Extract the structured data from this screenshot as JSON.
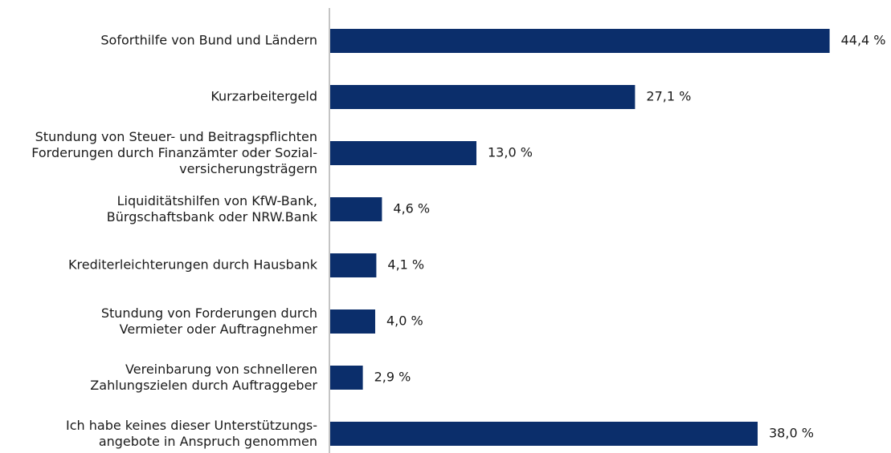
{
  "chart_data": {
    "type": "barh",
    "categories": [
      "Soforthilfe von Bund und Ländern",
      "Kurzarbeitergeld",
      "Stundung von Steuer- und Beitragspflichten\nForderungen durch Finanzämter oder Sozial-\nversicherungsträgern",
      "Liquiditätshilfen von KfW-Bank,\nBürgschaftsbank oder NRW.Bank",
      "Krediterleichterungen durch Hausbank",
      "Stundung von Forderungen durch\nVermieter oder Auftragnehmer",
      "Vereinbarung von schnelleren\nZahlungszielen durch Auftraggeber",
      "Ich habe keines dieser Unterstützungs-\nangebote in Anspruch genommen"
    ],
    "values": [
      44.4,
      27.1,
      13.0,
      4.6,
      4.1,
      4.0,
      2.9,
      38.0
    ],
    "value_labels": [
      "44,4 %",
      "27,1 %",
      "13,0 %",
      "4,6 %",
      "4,1 %",
      "4,0 %",
      "2,9 %",
      "38,0 %"
    ],
    "color": "#0b2e6b",
    "xlim": [
      0,
      50
    ]
  }
}
